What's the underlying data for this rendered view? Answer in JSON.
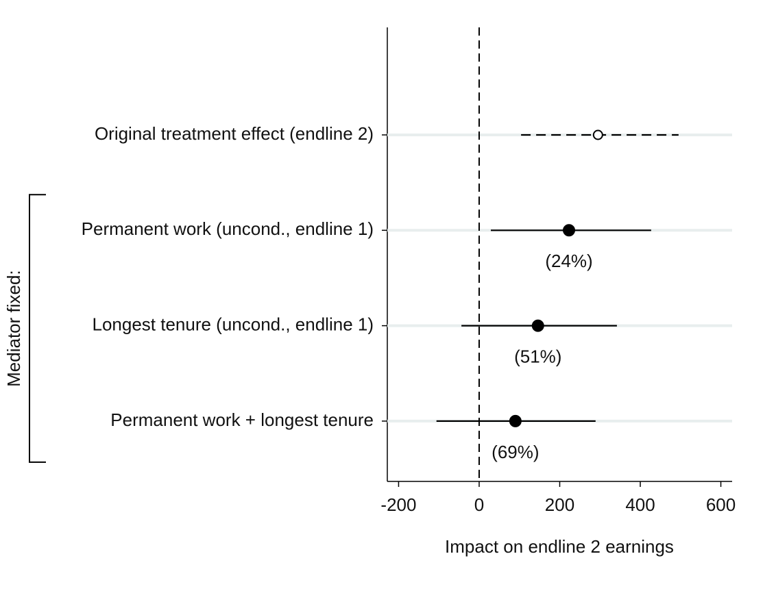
{
  "chart_data": {
    "type": "coefplot",
    "categories": [
      "Original treatment effect (endline 2)",
      "Permanent work (uncond., endline 1)",
      "Longest tenure (uncond., endline 1)",
      "Permanent work + longest tenure"
    ],
    "values": [
      295,
      223,
      146,
      90
    ],
    "ci_low": [
      104,
      29,
      -44,
      -106
    ],
    "ci_high": [
      495,
      427,
      342,
      289
    ],
    "annotations": [
      null,
      "(24%)",
      "(51%)",
      "(69%)"
    ],
    "hollow": [
      true,
      false,
      false,
      false
    ],
    "group_label": "Mediator fixed:",
    "group_rows": [
      1,
      2,
      3
    ],
    "xlabel": "Impact on endline 2 earnings",
    "xlim": [
      -228,
      628
    ],
    "xticks": [
      -200,
      0,
      200,
      400,
      600
    ],
    "reference_line": 0,
    "grid": true,
    "color": "#000000"
  }
}
